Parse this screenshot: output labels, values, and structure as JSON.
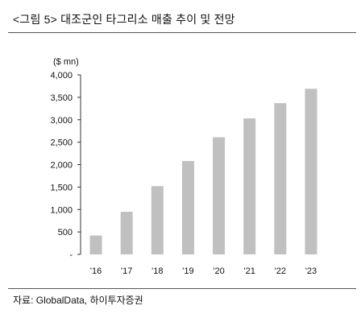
{
  "figure": {
    "title": "<그림 5> 대조군인 타그리소 매출 추이 및 전망",
    "source": "자료: GlobalData, 하이투자증권"
  },
  "chart_data": {
    "type": "bar",
    "title": "",
    "unit_label": "($ mn)",
    "categories": [
      "'16",
      "'17",
      "'18",
      "'19",
      "'20",
      "'21",
      "'22",
      "'23"
    ],
    "values": [
      420,
      950,
      1520,
      2080,
      2610,
      3030,
      3370,
      3690
    ],
    "ylim": [
      0,
      4000
    ],
    "yticks": [
      0,
      500,
      1000,
      1500,
      2000,
      2500,
      3000,
      3500,
      4000
    ],
    "ytick_labels": [
      "-",
      "500",
      "1,000",
      "1,500",
      "2,000",
      "2,500",
      "3,000",
      "3,500",
      "4,000"
    ],
    "grid": false,
    "legend": "none",
    "bar_color": "#c0c0c0",
    "axis_color": "#333333"
  }
}
